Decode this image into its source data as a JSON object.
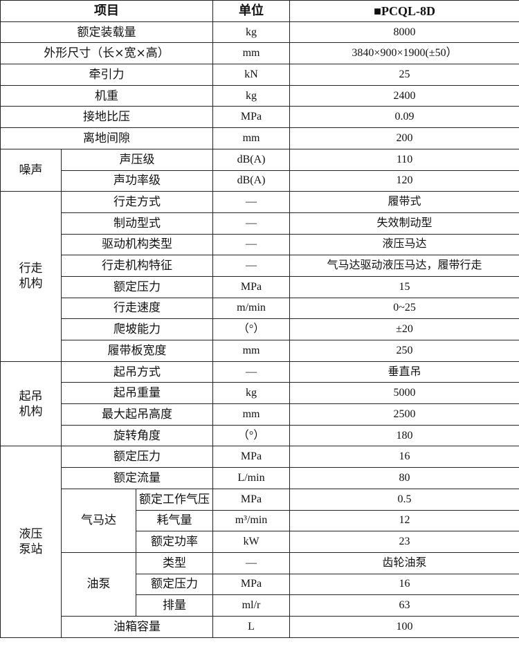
{
  "header": {
    "item": "项目",
    "unit": "单位",
    "model": "■PCQL-8D"
  },
  "rows": [
    {
      "item": "额定装载量",
      "unit": "kg",
      "value": "8000"
    },
    {
      "item": "外形尺寸（长×宽×高）",
      "unit": "mm",
      "value": "3840×900×1900(±50）"
    },
    {
      "item": "牵引力",
      "unit": "kN",
      "value": "25"
    },
    {
      "item": "机重",
      "unit": "kg",
      "value": "2400"
    },
    {
      "item": "接地比压",
      "unit": "MPa",
      "value": "0.09"
    },
    {
      "item": "离地间隙",
      "unit": "mm",
      "value": "200"
    }
  ],
  "noise": {
    "group": "噪声",
    "rows": [
      {
        "item": "声压级",
        "unit": "dB(A)",
        "value": "110"
      },
      {
        "item": "声功率级",
        "unit": "dB(A)",
        "value": "120"
      }
    ]
  },
  "travel": {
    "group_line1": "行走",
    "group_line2": "机构",
    "rows": [
      {
        "item": "行走方式",
        "unit": "—",
        "value": "履带式"
      },
      {
        "item": "制动型式",
        "unit": "—",
        "value": "失效制动型"
      },
      {
        "item": "驱动机构类型",
        "unit": "—",
        "value": "液压马达"
      },
      {
        "item": "行走机构特征",
        "unit": "—",
        "value": "气马达驱动液压马达，履带行走"
      },
      {
        "item": "额定压力",
        "unit": "MPa",
        "value": "15"
      },
      {
        "item": "行走速度",
        "unit": "m/min",
        "value": "0~25"
      },
      {
        "item": "爬坡能力",
        "unit": "（°）",
        "value": "±20"
      },
      {
        "item": "履带板宽度",
        "unit": "mm",
        "value": "250"
      }
    ]
  },
  "lifting": {
    "group_line1": "起吊",
    "group_line2": "机构",
    "rows": [
      {
        "item": "起吊方式",
        "unit": "—",
        "value": "垂直吊"
      },
      {
        "item": "起吊重量",
        "unit": "kg",
        "value": "5000"
      },
      {
        "item": "最大起吊高度",
        "unit": "mm",
        "value": "2500"
      },
      {
        "item": "旋转角度",
        "unit": "（°）",
        "value": "180"
      }
    ]
  },
  "pump_station": {
    "group_line1": "液压",
    "group_line2": "泵站",
    "rows": [
      {
        "item": "额定压力",
        "unit": "MPa",
        "value": "16"
      },
      {
        "item": "额定流量",
        "unit": "L/min",
        "value": "80"
      }
    ],
    "air_motor": {
      "label": "气马达",
      "rows": [
        {
          "item": "额定工作气压",
          "unit": "MPa",
          "value": "0.5"
        },
        {
          "item": "耗气量",
          "unit": "m³/min",
          "value": "12"
        },
        {
          "item": "额定功率",
          "unit": "kW",
          "value": "23"
        }
      ]
    },
    "oil_pump": {
      "label": "油泵",
      "rows": [
        {
          "item": "类型",
          "unit": "—",
          "value": "齿轮油泵"
        },
        {
          "item": "额定压力",
          "unit": "MPa",
          "value": "16"
        },
        {
          "item": "排量",
          "unit": "ml/r",
          "value": "63"
        }
      ]
    },
    "tank": {
      "item": "油箱容量",
      "unit": "L",
      "value": "100"
    }
  }
}
